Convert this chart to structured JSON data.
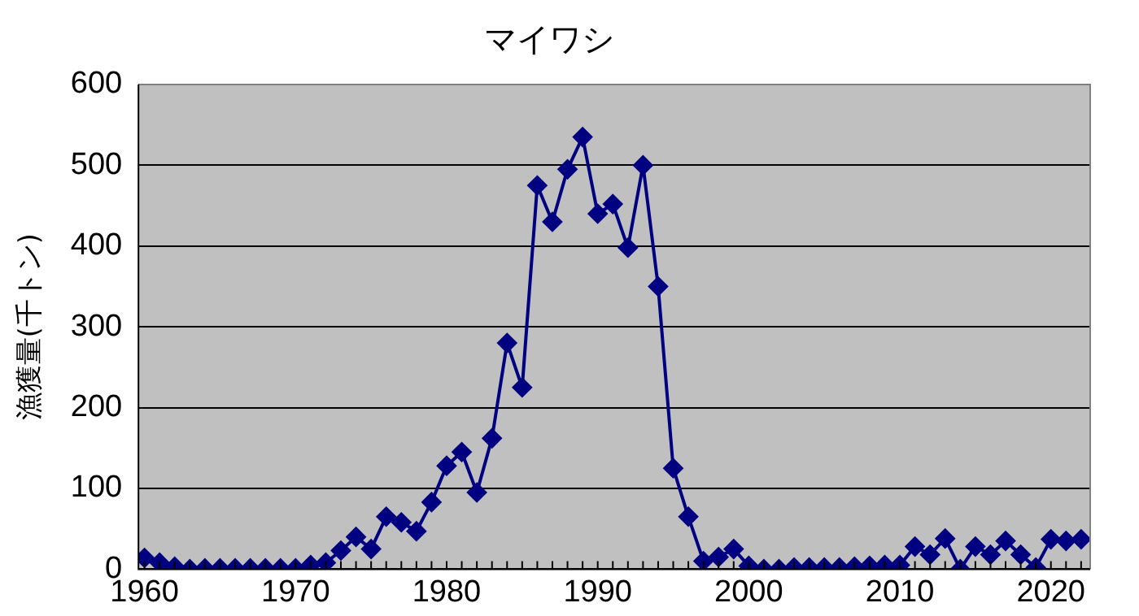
{
  "chart_data": {
    "type": "line",
    "title": "マイワシ",
    "ylabel": "漁獲量(千トン)",
    "x": [
      1960,
      1961,
      1962,
      1963,
      1964,
      1965,
      1966,
      1967,
      1968,
      1969,
      1970,
      1971,
      1972,
      1973,
      1974,
      1975,
      1976,
      1977,
      1978,
      1979,
      1980,
      1981,
      1982,
      1983,
      1984,
      1985,
      1986,
      1987,
      1988,
      1989,
      1990,
      1991,
      1992,
      1993,
      1994,
      1995,
      1996,
      1997,
      1998,
      1999,
      2000,
      2001,
      2002,
      2003,
      2004,
      2005,
      2006,
      2007,
      2008,
      2009,
      2010,
      2011,
      2012,
      2013,
      2014,
      2015,
      2016,
      2017,
      2018,
      2019,
      2020,
      2021,
      2022
    ],
    "series": [
      {
        "color": "#000080",
        "values": [
          14,
          8,
          3,
          0,
          1,
          1,
          1,
          1,
          1,
          1,
          1,
          5,
          8,
          23,
          40,
          25,
          65,
          58,
          47,
          83,
          128,
          145,
          95,
          162,
          280,
          225,
          475,
          430,
          495,
          535,
          440,
          452,
          398,
          500,
          350,
          125,
          65,
          10,
          15,
          25,
          4,
          0,
          0,
          2,
          2,
          2,
          2,
          3,
          4,
          5,
          5,
          28,
          18,
          38,
          0,
          28,
          18,
          35,
          18,
          2,
          37,
          35,
          37
        ]
      }
    ],
    "xlim": [
      1959.6,
      2022.6
    ],
    "xticks": [
      1960,
      1970,
      1980,
      1990,
      2000,
      2010,
      2020
    ],
    "ylim": [
      0,
      600
    ],
    "yticks": [
      0,
      100,
      200,
      300,
      400,
      500,
      600
    ],
    "grid": "y",
    "legend": false,
    "marker": "diamond",
    "line_style": "solid"
  }
}
